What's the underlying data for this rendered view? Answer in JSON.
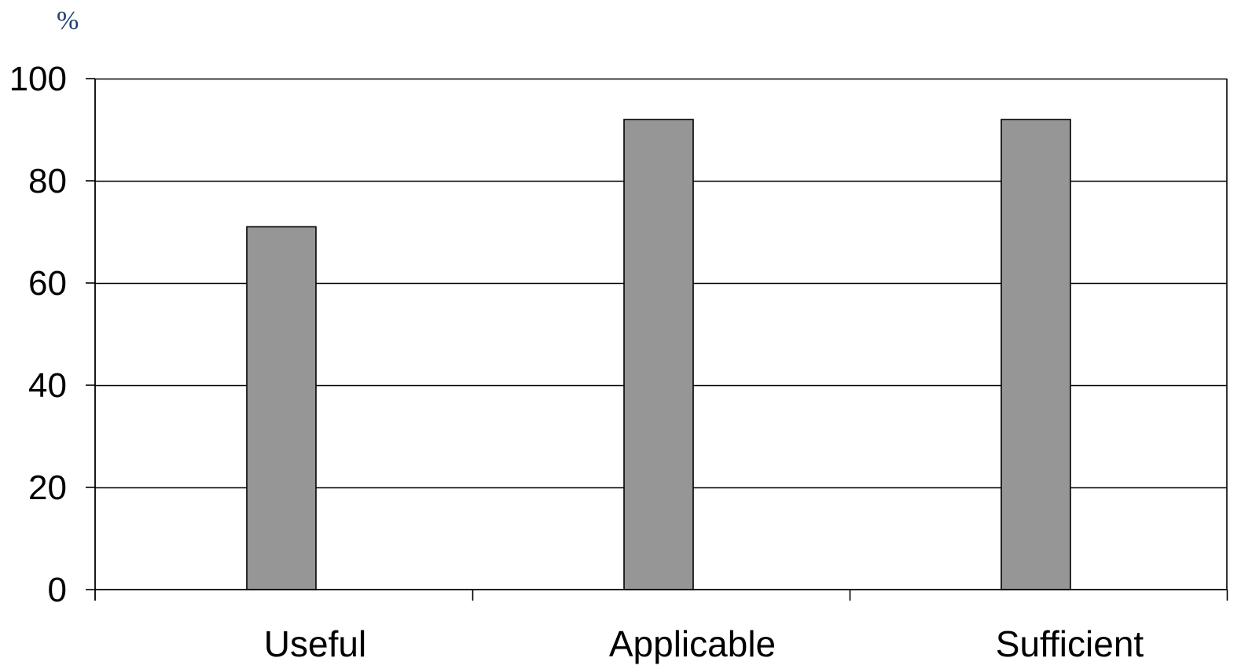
{
  "chart_data": {
    "type": "bar",
    "unit_label": "%",
    "categories": [
      "Useful",
      "Applicable",
      "Sufficient"
    ],
    "values": [
      71,
      92,
      92
    ],
    "ylim": [
      0,
      100
    ],
    "yticks": [
      0,
      20,
      40,
      60,
      80,
      100
    ],
    "grid": true,
    "legend": "none",
    "bar_color": "#969696",
    "unit_color": "#1f3f6e"
  }
}
